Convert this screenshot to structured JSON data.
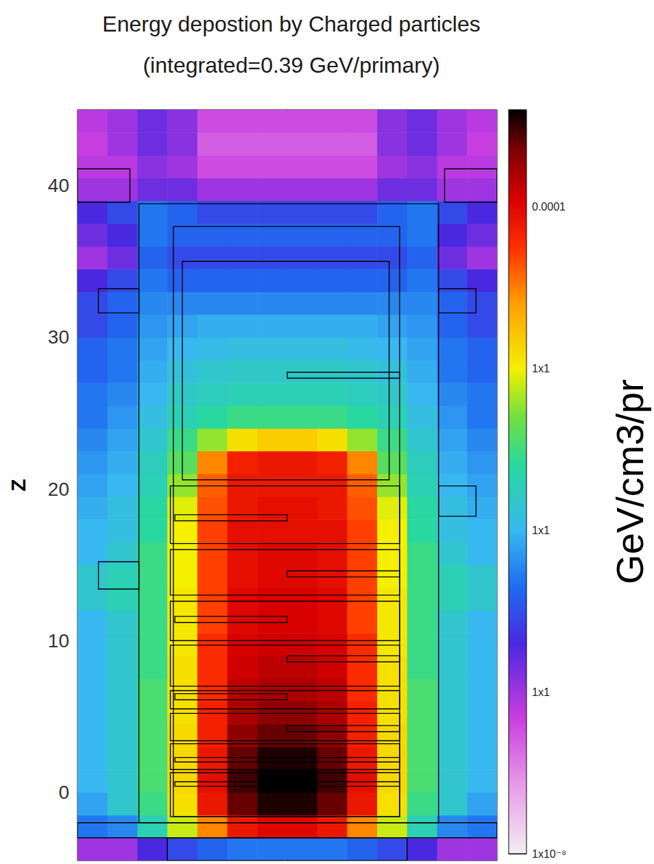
{
  "chart_data": {
    "type": "heatmap",
    "title": "Energy depostion by Charged particles",
    "subtitle": "(integrated=0.39 GeV/primary)",
    "ylabel": "Z",
    "colorbar_label": "GeV/cm3/pr",
    "log": true,
    "grid": false,
    "tick_labels": "y",
    "xlim": [
      -14,
      14
    ],
    "ylim": [
      -4.5,
      45
    ],
    "yticks": [
      0,
      10,
      20,
      30,
      40
    ],
    "clim": [
      1e-08,
      0.0004
    ],
    "cticks": [
      {
        "value": 1e-08,
        "label": "1x10⁻⁸"
      },
      {
        "value": 1e-07,
        "label": "1x1"
      },
      {
        "value": 1e-06,
        "label": "1x1"
      },
      {
        "value": 1e-05,
        "label": "1x1"
      },
      0.0001
    ],
    "x_bins": [
      -14,
      -12,
      -10,
      -8,
      -6,
      -4,
      -2,
      0,
      2,
      4,
      6,
      8,
      10,
      12,
      14
    ],
    "z_bins": [
      -4.5,
      -3,
      -1.5,
      0,
      1.5,
      3,
      4.5,
      6,
      7.5,
      9,
      10.5,
      12,
      13.5,
      15,
      16.5,
      18,
      19.5,
      21,
      22.5,
      24,
      25.5,
      27,
      28.5,
      30,
      31.5,
      33,
      34.5,
      36,
      37.5,
      39,
      40.5,
      42,
      43.5,
      45
    ],
    "values": [
      [
        1e-07,
        1e-07,
        2e-07,
        3e-07,
        4e-07,
        5e-07,
        5e-07,
        5e-07,
        5e-07,
        4e-07,
        3e-07,
        2e-07,
        1e-07,
        1e-07
      ],
      [
        5e-07,
        6e-07,
        2e-06,
        8e-06,
        3e-05,
        8e-05,
        0.0001,
        0.0001,
        8e-05,
        3e-05,
        8e-06,
        2e-06,
        6e-07,
        5e-07
      ],
      [
        8e-07,
        1.5e-06,
        3e-06,
        1.2e-05,
        8e-05,
        0.00025,
        0.00035,
        0.00035,
        0.00025,
        8e-05,
        1.2e-05,
        3e-06,
        1.5e-06,
        8e-07
      ],
      [
        1e-06,
        1.5e-06,
        3.5e-06,
        1.3e-05,
        9e-05,
        0.0003,
        0.0004,
        0.0004,
        0.0003,
        9e-05,
        1.3e-05,
        3.5e-06,
        1.5e-06,
        1e-06
      ],
      [
        1e-06,
        1.5e-06,
        3.5e-06,
        1.3e-05,
        8e-05,
        0.00025,
        0.00035,
        0.00035,
        0.00025,
        8e-05,
        1.3e-05,
        3.5e-06,
        1.5e-06,
        1e-06
      ],
      [
        1e-06,
        1.5e-06,
        3.5e-06,
        1.3e-05,
        7e-05,
        0.0002,
        0.00025,
        0.00025,
        0.0002,
        7e-05,
        1.3e-05,
        3.5e-06,
        1.5e-06,
        1e-06
      ],
      [
        1e-06,
        1.5e-06,
        3.5e-06,
        1.2e-05,
        7e-05,
        0.00016,
        0.0002,
        0.0002,
        0.00016,
        7e-05,
        1.2e-05,
        3.5e-06,
        1.5e-06,
        1e-06
      ],
      [
        1e-06,
        1.5e-06,
        3.5e-06,
        1.2e-05,
        6e-05,
        0.00014,
        0.00016,
        0.00016,
        0.00014,
        6e-05,
        1.2e-05,
        3.5e-06,
        1.5e-06,
        1e-06
      ],
      [
        1e-06,
        1.5e-06,
        3e-06,
        1.2e-05,
        6e-05,
        0.00012,
        0.00014,
        0.00014,
        0.00012,
        6e-05,
        1.2e-05,
        3e-06,
        1.5e-06,
        1e-06
      ],
      [
        1e-06,
        1.5e-06,
        3e-06,
        1.1e-05,
        6e-05,
        0.00011,
        0.00012,
        0.00012,
        0.00011,
        6e-05,
        1.1e-05,
        3e-06,
        1.5e-06,
        1e-06
      ],
      [
        1e-06,
        1.5e-06,
        3e-06,
        1.1e-05,
        5e-05,
        0.0001,
        0.00011,
        0.00011,
        0.0001,
        5e-05,
        1.1e-05,
        3e-06,
        1.5e-06,
        1e-06
      ],
      [
        1.5e-06,
        2e-06,
        3e-06,
        1.1e-05,
        5e-05,
        0.0001,
        0.00011,
        0.00011,
        0.0001,
        5e-05,
        1.1e-05,
        3e-06,
        2e-06,
        1.5e-06
      ],
      [
        1.5e-06,
        2e-06,
        3e-06,
        1e-05,
        5e-05,
        9e-05,
        0.0001,
        0.0001,
        9e-05,
        5e-05,
        1e-05,
        3e-06,
        2e-06,
        1.5e-06
      ],
      [
        1e-06,
        1.5e-06,
        3e-06,
        1e-05,
        5e-05,
        9e-05,
        0.0001,
        0.0001,
        9e-05,
        5e-05,
        1e-05,
        3e-06,
        1.5e-06,
        1e-06
      ],
      [
        1e-06,
        1.2e-06,
        2.5e-06,
        1e-05,
        5e-05,
        9e-05,
        9e-05,
        9e-05,
        9e-05,
        5e-05,
        1e-05,
        2.5e-06,
        1.2e-06,
        1e-06
      ],
      [
        9e-07,
        1.2e-06,
        2.5e-06,
        9e-06,
        4.5e-05,
        8e-05,
        9e-05,
        9e-05,
        8e-05,
        4.5e-05,
        9e-06,
        2.5e-06,
        1.2e-06,
        9e-07
      ],
      [
        8e-07,
        1e-06,
        2e-06,
        6e-06,
        4e-05,
        8e-05,
        8e-05,
        8e-05,
        8e-05,
        4e-05,
        6e-06,
        2e-06,
        1e-06,
        8e-07
      ],
      [
        7e-07,
        9e-07,
        1.8e-06,
        4e-06,
        3e-05,
        7e-05,
        8e-05,
        8e-05,
        7e-05,
        3e-05,
        4e-06,
        1.8e-06,
        9e-07,
        7e-07
      ],
      [
        6e-07,
        8e-07,
        1.5e-06,
        3e-06,
        6e-06,
        1.2e-05,
        1.5e-05,
        1.5e-05,
        1.2e-05,
        6e-06,
        3e-06,
        1.5e-06,
        8e-07,
        6e-07
      ],
      [
        5e-07,
        7e-07,
        1.2e-06,
        2e-06,
        2.5e-06,
        3e-06,
        3e-06,
        3e-06,
        3e-06,
        2.5e-06,
        2e-06,
        1.2e-06,
        7e-07,
        5e-07
      ],
      [
        5e-07,
        6e-07,
        1e-06,
        1.6e-06,
        1.8e-06,
        2e-06,
        2e-06,
        2e-06,
        2e-06,
        1.8e-06,
        1.6e-06,
        1e-06,
        6e-07,
        5e-07
      ],
      [
        4e-07,
        5e-07,
        9e-07,
        1.3e-06,
        1.5e-06,
        1.6e-06,
        1.6e-06,
        1.6e-06,
        1.6e-06,
        1.5e-06,
        1.3e-06,
        9e-07,
        5e-07,
        4e-07
      ],
      [
        4e-07,
        5e-07,
        8e-07,
        1e-06,
        1.1e-06,
        1.2e-06,
        1.2e-06,
        1.2e-06,
        1.2e-06,
        1.1e-06,
        1e-06,
        8e-07,
        5e-07,
        4e-07
      ],
      [
        3e-07,
        4e-07,
        7e-07,
        8e-07,
        9e-07,
        9e-07,
        9e-07,
        9e-07,
        9e-07,
        9e-07,
        8e-07,
        7e-07,
        4e-07,
        3e-07
      ],
      [
        3e-07,
        4e-07,
        6e-07,
        6e-07,
        6e-07,
        6e-07,
        6e-07,
        6e-07,
        6e-07,
        6e-07,
        6e-07,
        6e-07,
        4e-07,
        3e-07
      ],
      [
        2e-07,
        3e-07,
        5e-07,
        4e-07,
        4e-07,
        4e-07,
        4e-07,
        4e-07,
        4e-07,
        4e-07,
        4e-07,
        5e-07,
        3e-07,
        2e-07
      ],
      [
        1e-07,
        1.5e-07,
        4e-07,
        3e-07,
        3e-07,
        3e-07,
        3e-07,
        3e-07,
        3e-07,
        3e-07,
        3e-07,
        4e-07,
        1.5e-07,
        1e-07
      ],
      [
        1.5e-07,
        2e-07,
        5e-07,
        4e-07,
        4e-07,
        4e-07,
        4e-07,
        4e-07,
        4e-07,
        4e-07,
        4e-07,
        5e-07,
        2e-07,
        1.5e-07
      ],
      [
        2e-07,
        3e-07,
        5e-07,
        4e-07,
        3e-07,
        3e-07,
        3e-07,
        3e-07,
        3e-07,
        3e-07,
        4e-07,
        5e-07,
        3e-07,
        2e-07
      ],
      [
        1e-07,
        1e-07,
        1.5e-07,
        1.5e-07,
        1e-07,
        1e-07,
        1e-07,
        1e-07,
        1e-07,
        1e-07,
        1.5e-07,
        1.5e-07,
        1e-07,
        1e-07
      ],
      [
        8e-08,
        8e-08,
        1.2e-07,
        1e-07,
        6e-08,
        6e-08,
        6e-08,
        6e-08,
        6e-08,
        6e-08,
        1e-07,
        1.2e-07,
        8e-08,
        8e-08
      ],
      [
        7e-08,
        1e-07,
        1.5e-07,
        1.2e-07,
        5e-08,
        5e-08,
        5e-08,
        5e-08,
        5e-08,
        5e-08,
        1.2e-07,
        1.5e-07,
        1e-07,
        7e-08
      ],
      [
        8e-08,
        1e-07,
        1.5e-07,
        1.2e-07,
        6e-08,
        6e-08,
        6e-08,
        6e-08,
        6e-08,
        6e-08,
        1.2e-07,
        1.5e-07,
        1e-07,
        8e-08
      ]
    ],
    "outlines": [
      [
        -9.9,
        -2.0,
        10.1,
        38.8
      ],
      [
        -7.6,
        -1.6,
        7.5,
        37.3
      ],
      [
        -7.0,
        20.6,
        6.8,
        35.0
      ],
      [
        -7.8,
        16.4,
        7.5,
        20.2
      ],
      [
        -7.8,
        13.0,
        7.5,
        16.0
      ],
      [
        -7.8,
        10.0,
        7.5,
        12.6
      ],
      [
        -7.8,
        7.0,
        7.5,
        9.7
      ],
      [
        -7.8,
        5.5,
        7.5,
        6.7
      ],
      [
        -7.8,
        3.4,
        7.5,
        5.2
      ],
      [
        -7.8,
        1.5,
        7.5,
        3.2
      ],
      [
        -7.8,
        -1.6,
        7.5,
        1.3
      ],
      [
        -7.5,
        17.9,
        0,
        18.3
      ],
      [
        0,
        14.2,
        7.5,
        14.6
      ],
      [
        -7.5,
        11.2,
        0,
        11.6
      ],
      [
        0,
        8.6,
        7.5,
        9.0
      ],
      [
        -7.5,
        6.1,
        0,
        6.5
      ],
      [
        0,
        4.0,
        7.5,
        4.4
      ],
      [
        0,
        27.3,
        7.5,
        27.7
      ],
      [
        -7.5,
        2.0,
        7.5,
        2.3
      ],
      [
        -7.5,
        0.4,
        7.5,
        0.7
      ],
      [
        -12.6,
        13.4,
        -9.9,
        15.2
      ],
      [
        10.1,
        18.2,
        12.6,
        20.2
      ],
      [
        -14,
        38.9,
        -10.5,
        41.1
      ],
      [
        10.5,
        38.9,
        14,
        41.1
      ],
      [
        -12.6,
        31.6,
        -9.9,
        33.2
      ],
      [
        10.1,
        31.6,
        12.6,
        33.2
      ],
      [
        -14,
        -3.0,
        14,
        -2.0
      ],
      [
        -8.0,
        -4.5,
        8.0,
        -3.0
      ]
    ]
  }
}
